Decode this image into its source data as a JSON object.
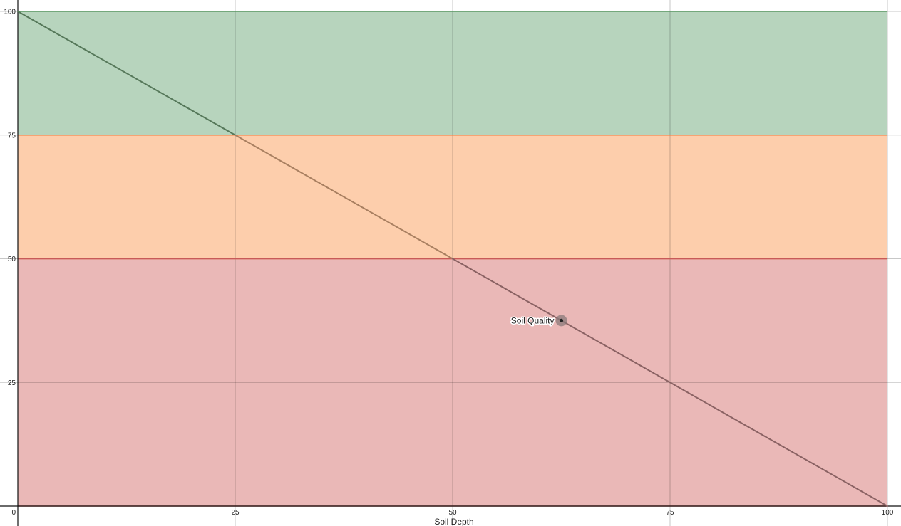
{
  "chart_data": {
    "type": "line",
    "title": "",
    "xlabel": "Soil Depth",
    "ylabel": "",
    "xlim": [
      0,
      100
    ],
    "ylim": [
      0,
      100
    ],
    "x_ticks": [
      0,
      25,
      50,
      75,
      100
    ],
    "y_ticks": [
      0,
      25,
      50,
      75,
      100
    ],
    "grid": true,
    "bands": [
      {
        "y_from": 75,
        "y_to": 100,
        "fill": "#b7d4bd",
        "edge": "#5e9a66"
      },
      {
        "y_from": 50,
        "y_to": 75,
        "fill": "#fdceac",
        "edge": "#f07b3c"
      },
      {
        "y_from": 0,
        "y_to": 50,
        "fill": "#eab8b7",
        "edge": "#c85a58"
      }
    ],
    "series": [
      {
        "x": [
          0,
          25,
          50,
          75,
          100
        ],
        "values": [
          100,
          75,
          50,
          25,
          0
        ],
        "segment_colors": [
          "#56785a",
          "#a87f60",
          "#8a6263",
          "#8a6263"
        ]
      }
    ],
    "points": [
      {
        "label": "Soil Quality",
        "x": 62.5,
        "y": 37.5,
        "color": "#222222",
        "halo": "#8a7a7a"
      }
    ]
  }
}
